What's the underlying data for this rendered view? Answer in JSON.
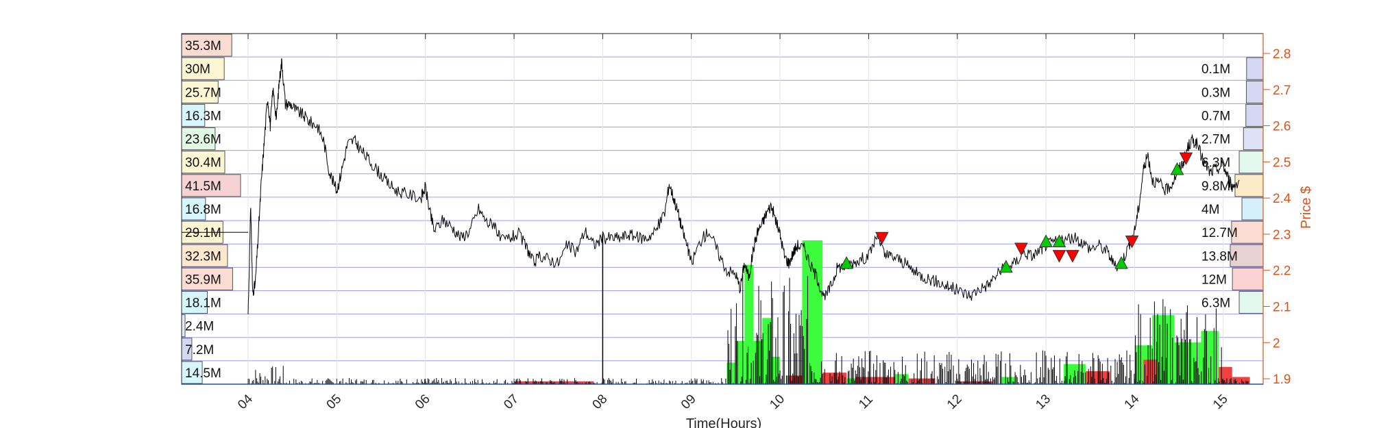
{
  "chart_data": {
    "type": "line",
    "xlabel": "Time(Hours)",
    "ylabel": "Price $",
    "xlim": [
      3.25,
      15.45
    ],
    "ylim": [
      1.885,
      2.855
    ],
    "x_ticks": [
      "04",
      "05",
      "06",
      "07",
      "08",
      "09",
      "10",
      "11",
      "12",
      "13",
      "14",
      "15"
    ],
    "x_tick_values": [
      4,
      5,
      6,
      7,
      8,
      9,
      10,
      11,
      12,
      13,
      14,
      15
    ],
    "y_ticks": [
      "1.9",
      "2",
      "2.1",
      "2.2",
      "2.3",
      "2.4",
      "2.5",
      "2.6",
      "2.7",
      "2.8"
    ],
    "y_tick_values": [
      1.9,
      2.0,
      2.1,
      2.2,
      2.3,
      2.4,
      2.5,
      2.6,
      2.7,
      2.8
    ],
    "grid": true,
    "y_axis_side": "right",
    "axis_color": "#d95319",
    "price_series": {
      "name": "",
      "color": "#000000",
      "points": [
        [
          4.0,
          2.08
        ],
        [
          4.03,
          2.38
        ],
        [
          4.05,
          2.14
        ],
        [
          4.08,
          2.16
        ],
        [
          4.12,
          2.32
        ],
        [
          4.15,
          2.45
        ],
        [
          4.18,
          2.55
        ],
        [
          4.22,
          2.68
        ],
        [
          4.25,
          2.6
        ],
        [
          4.28,
          2.7
        ],
        [
          4.32,
          2.62
        ],
        [
          4.35,
          2.72
        ],
        [
          4.38,
          2.78
        ],
        [
          4.42,
          2.66
        ],
        [
          4.48,
          2.66
        ],
        [
          4.55,
          2.64
        ],
        [
          4.62,
          2.63
        ],
        [
          4.7,
          2.61
        ],
        [
          4.78,
          2.6
        ],
        [
          4.85,
          2.56
        ],
        [
          4.92,
          2.47
        ],
        [
          5.0,
          2.42
        ],
        [
          5.05,
          2.47
        ],
        [
          5.12,
          2.55
        ],
        [
          5.2,
          2.56
        ],
        [
          5.28,
          2.53
        ],
        [
          5.38,
          2.5
        ],
        [
          5.48,
          2.47
        ],
        [
          5.58,
          2.44
        ],
        [
          5.68,
          2.42
        ],
        [
          5.8,
          2.41
        ],
        [
          5.95,
          2.4
        ],
        [
          6.0,
          2.43
        ],
        [
          6.05,
          2.36
        ],
        [
          6.1,
          2.31
        ],
        [
          6.2,
          2.34
        ],
        [
          6.3,
          2.32
        ],
        [
          6.4,
          2.29
        ],
        [
          6.5,
          2.31
        ],
        [
          6.6,
          2.37
        ],
        [
          6.7,
          2.33
        ],
        [
          6.78,
          2.33
        ],
        [
          6.85,
          2.28
        ],
        [
          6.95,
          2.29
        ],
        [
          7.05,
          2.3
        ],
        [
          7.15,
          2.26
        ],
        [
          7.22,
          2.22
        ],
        [
          7.3,
          2.24
        ],
        [
          7.4,
          2.23
        ],
        [
          7.5,
          2.22
        ],
        [
          7.6,
          2.27
        ],
        [
          7.7,
          2.25
        ],
        [
          7.8,
          2.31
        ],
        [
          7.9,
          2.27
        ],
        [
          8.0,
          2.29
        ],
        [
          8.1,
          2.29
        ],
        [
          8.2,
          2.29
        ],
        [
          8.3,
          2.3
        ],
        [
          8.4,
          2.29
        ],
        [
          8.5,
          2.29
        ],
        [
          8.6,
          2.31
        ],
        [
          8.7,
          2.36
        ],
        [
          8.75,
          2.44
        ],
        [
          8.8,
          2.4
        ],
        [
          8.85,
          2.36
        ],
        [
          8.9,
          2.31
        ],
        [
          8.95,
          2.27
        ],
        [
          9.0,
          2.22
        ],
        [
          9.1,
          2.28
        ],
        [
          9.2,
          2.31
        ],
        [
          9.3,
          2.25
        ],
        [
          9.4,
          2.2
        ],
        [
          9.5,
          2.19
        ],
        [
          9.55,
          2.15
        ],
        [
          9.6,
          2.22
        ],
        [
          9.65,
          2.18
        ],
        [
          9.7,
          2.26
        ],
        [
          9.75,
          2.31
        ],
        [
          9.8,
          2.33
        ],
        [
          9.85,
          2.36
        ],
        [
          9.9,
          2.38
        ],
        [
          9.95,
          2.34
        ],
        [
          10.0,
          2.3
        ],
        [
          10.05,
          2.24
        ],
        [
          10.1,
          2.22
        ],
        [
          10.15,
          2.25
        ],
        [
          10.2,
          2.27
        ],
        [
          10.28,
          2.26
        ],
        [
          10.35,
          2.21
        ],
        [
          10.42,
          2.18
        ],
        [
          10.5,
          2.12
        ],
        [
          10.58,
          2.16
        ],
        [
          10.65,
          2.21
        ],
        [
          10.72,
          2.21
        ],
        [
          10.8,
          2.22
        ],
        [
          10.9,
          2.23
        ],
        [
          11.0,
          2.24
        ],
        [
          11.1,
          2.3
        ],
        [
          11.18,
          2.24
        ],
        [
          11.25,
          2.24
        ],
        [
          11.35,
          2.23
        ],
        [
          11.45,
          2.21
        ],
        [
          11.55,
          2.19
        ],
        [
          11.65,
          2.18
        ],
        [
          11.75,
          2.17
        ],
        [
          11.85,
          2.16
        ],
        [
          11.95,
          2.15
        ],
        [
          12.05,
          2.14
        ],
        [
          12.15,
          2.13
        ],
        [
          12.25,
          2.15
        ],
        [
          12.35,
          2.16
        ],
        [
          12.45,
          2.19
        ],
        [
          12.55,
          2.21
        ],
        [
          12.65,
          2.22
        ],
        [
          12.75,
          2.25
        ],
        [
          12.85,
          2.24
        ],
        [
          12.95,
          2.26
        ],
        [
          13.0,
          2.27
        ],
        [
          13.1,
          2.28
        ],
        [
          13.2,
          2.28
        ],
        [
          13.3,
          2.29
        ],
        [
          13.4,
          2.28
        ],
        [
          13.5,
          2.26
        ],
        [
          13.6,
          2.27
        ],
        [
          13.7,
          2.25
        ],
        [
          13.78,
          2.21
        ],
        [
          13.85,
          2.22
        ],
        [
          13.92,
          2.26
        ],
        [
          14.0,
          2.31
        ],
        [
          14.05,
          2.38
        ],
        [
          14.1,
          2.48
        ],
        [
          14.15,
          2.52
        ],
        [
          14.2,
          2.45
        ],
        [
          14.28,
          2.44
        ],
        [
          14.35,
          2.42
        ],
        [
          14.42,
          2.44
        ],
        [
          14.5,
          2.48
        ],
        [
          14.55,
          2.5
        ],
        [
          14.6,
          2.54
        ],
        [
          14.65,
          2.56
        ],
        [
          14.7,
          2.55
        ],
        [
          14.78,
          2.5
        ],
        [
          14.85,
          2.47
        ],
        [
          14.92,
          2.48
        ],
        [
          15.0,
          2.49
        ],
        [
          15.05,
          2.46
        ],
        [
          15.1,
          2.43
        ],
        [
          15.18,
          2.45
        ]
      ]
    },
    "buy_markers": [
      [
        10.75,
        2.22
      ],
      [
        12.55,
        2.21
      ],
      [
        13.0,
        2.28
      ],
      [
        13.15,
        2.28
      ],
      [
        13.85,
        2.22
      ],
      [
        14.48,
        2.48
      ]
    ],
    "sell_markers": [
      [
        11.15,
        2.29
      ],
      [
        12.72,
        2.26
      ],
      [
        13.15,
        2.24
      ],
      [
        13.3,
        2.24
      ],
      [
        13.97,
        2.28
      ],
      [
        14.58,
        2.51
      ]
    ],
    "buy_marker_color": "#00cc00",
    "sell_marker_color": "#ff0000",
    "volume_bars_green": [
      [
        9.4,
        9.5,
        0.15
      ],
      [
        9.5,
        9.6,
        0.3
      ],
      [
        9.6,
        9.7,
        0.83
      ],
      [
        9.7,
        9.8,
        0.3
      ],
      [
        9.8,
        9.9,
        0.46
      ],
      [
        9.9,
        10.0,
        0.19
      ],
      [
        10.25,
        10.48,
        1.0
      ],
      [
        10.75,
        10.85,
        0.04
      ],
      [
        11.3,
        11.45,
        0.07
      ],
      [
        12.5,
        12.65,
        0.05
      ],
      [
        13.2,
        13.45,
        0.14
      ],
      [
        14.0,
        14.2,
        0.27
      ],
      [
        14.2,
        14.45,
        0.48
      ],
      [
        14.45,
        14.75,
        0.29
      ],
      [
        14.75,
        14.95,
        0.37
      ]
    ],
    "volume_bars_red": [
      [
        7.0,
        7.9,
        0.02
      ],
      [
        10.1,
        10.25,
        0.06
      ],
      [
        10.48,
        10.75,
        0.08
      ],
      [
        10.85,
        11.3,
        0.05
      ],
      [
        11.45,
        11.75,
        0.04
      ],
      [
        12.0,
        12.4,
        0.02
      ],
      [
        13.45,
        13.72,
        0.09
      ],
      [
        14.1,
        14.25,
        0.17
      ],
      [
        14.95,
        15.1,
        0.12
      ],
      [
        15.1,
        15.3,
        0.05
      ]
    ],
    "volume_bar_fill": {
      "green": "#3dfc3d",
      "red": "#f04040"
    },
    "left_volume_profile": [
      {
        "label": "35.3M",
        "price": 2.855,
        "value": 35.3,
        "color": "#fadcd2"
      },
      {
        "label": "30M",
        "price": 2.79,
        "value": 30.0,
        "color": "#fdf6d2"
      },
      {
        "label": "25.7M",
        "price": 2.725,
        "value": 25.7,
        "color": "#fdf6d2"
      },
      {
        "label": "16.3M",
        "price": 2.66,
        "value": 16.3,
        "color": "#d6f6fb"
      },
      {
        "label": "23.6M",
        "price": 2.595,
        "value": 23.6,
        "color": "#e2f8e2"
      },
      {
        "label": "30.4M",
        "price": 2.53,
        "value": 30.4,
        "color": "#fdf6d2"
      },
      {
        "label": "41.5M",
        "price": 2.465,
        "value": 41.5,
        "color": "#f7d2d2"
      },
      {
        "label": "16.8M",
        "price": 2.4,
        "value": 16.8,
        "color": "#d6f6fb"
      },
      {
        "label": "29.1M",
        "price": 2.335,
        "value": 29.1,
        "color": "#fdf6d2"
      },
      {
        "label": "32.3M",
        "price": 2.27,
        "value": 32.3,
        "color": "#fde8cf"
      },
      {
        "label": "35.9M",
        "price": 2.205,
        "value": 35.9,
        "color": "#fadcd2"
      },
      {
        "label": "18.1M",
        "price": 2.14,
        "value": 18.1,
        "color": "#d6f6fb"
      },
      {
        "label": "2.4M",
        "price": 2.075,
        "value": 2.4,
        "color": "#e6e8f8"
      },
      {
        "label": "7.2M",
        "price": 2.01,
        "value": 7.2,
        "color": "#d4d8f3"
      },
      {
        "label": "14.5M",
        "price": 1.945,
        "value": 14.5,
        "color": "#d6f6fb"
      }
    ],
    "right_volume_profile": [
      {
        "label": "0.1M",
        "price": 2.79,
        "value": 0.1,
        "color": "#d4d8f3"
      },
      {
        "label": "0.3M",
        "price": 2.725,
        "value": 0.3,
        "color": "#d4d8f3"
      },
      {
        "label": "0.7M",
        "price": 2.66,
        "value": 0.7,
        "color": "#d4d8f3"
      },
      {
        "label": "2.7M",
        "price": 2.595,
        "value": 2.7,
        "color": "#dde2f6"
      },
      {
        "label": "6.3M",
        "price": 2.53,
        "value": 6.3,
        "color": "#e2f8ee"
      },
      {
        "label": "9.8M",
        "price": 2.465,
        "value": 9.8,
        "color": "#fdebc8"
      },
      {
        "label": "4M",
        "price": 2.4,
        "value": 4.0,
        "color": "#d6f0fb"
      },
      {
        "label": "12.7M",
        "price": 2.335,
        "value": 12.7,
        "color": "#fadcd2"
      },
      {
        "label": "13.8M",
        "price": 2.27,
        "value": 13.8,
        "color": "#e6d2d2"
      },
      {
        "label": "12M",
        "price": 2.205,
        "value": 12.0,
        "color": "#fad2d2"
      },
      {
        "label": "6.3M",
        "price": 2.14,
        "value": 6.3,
        "color": "#e2f8ee"
      }
    ],
    "price_line_level": 2.305
  }
}
